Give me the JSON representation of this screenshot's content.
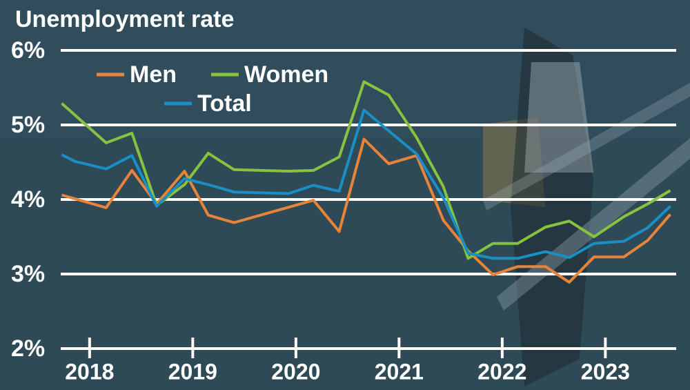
{
  "chart_data": {
    "type": "line",
    "title": "Unemployment rate",
    "xlim": [
      2017.72,
      2023.66
    ],
    "xticks": [
      2018,
      2019,
      2020,
      2021,
      2022,
      2023
    ],
    "ylim": [
      2,
      6
    ],
    "yticks": [
      {
        "value": 2,
        "label": "2%"
      },
      {
        "value": 3,
        "label": "3%"
      },
      {
        "value": 4,
        "label": "4%"
      },
      {
        "value": 5,
        "label": "5%"
      },
      {
        "value": 6,
        "label": "6%"
      }
    ],
    "grid": true,
    "series": [
      {
        "name": "Men",
        "color": "#e8843a",
        "x": [
          2017.73,
          2018.16,
          2018.41,
          2018.65,
          2018.92,
          2019.15,
          2019.4,
          2020.17,
          2020.42,
          2020.66,
          2020.9,
          2021.17,
          2021.43,
          2021.67,
          2021.91,
          2022.15,
          2022.42,
          2022.65,
          2022.89,
          2023.18,
          2023.41,
          2023.63
        ],
        "values": [
          4.06,
          3.89,
          4.39,
          3.94,
          4.38,
          3.79,
          3.69,
          3.99,
          3.57,
          4.81,
          4.48,
          4.59,
          3.72,
          3.31,
          2.99,
          3.1,
          3.1,
          2.89,
          3.23,
          3.23,
          3.45,
          3.8
        ]
      },
      {
        "name": "Women",
        "color": "#86c440",
        "x": [
          2017.73,
          2018.16,
          2018.41,
          2018.65,
          2018.92,
          2019.15,
          2019.4,
          2019.93,
          2020.17,
          2020.42,
          2020.66,
          2020.9,
          2021.17,
          2021.43,
          2021.67,
          2021.91,
          2022.15,
          2022.42,
          2022.65,
          2022.89,
          2023.18,
          2023.41,
          2023.63
        ],
        "values": [
          5.29,
          4.76,
          4.89,
          3.92,
          4.2,
          4.62,
          4.4,
          4.38,
          4.39,
          4.57,
          5.58,
          5.4,
          4.83,
          4.17,
          3.21,
          3.41,
          3.41,
          3.63,
          3.71,
          3.5,
          3.77,
          3.94,
          4.12
        ]
      },
      {
        "name": "Total",
        "color": "#1a8fc6",
        "x": [
          2017.73,
          2017.86,
          2018.16,
          2018.41,
          2018.65,
          2018.92,
          2019.15,
          2019.4,
          2019.93,
          2020.17,
          2020.42,
          2020.66,
          2020.9,
          2021.17,
          2021.43,
          2021.67,
          2021.91,
          2022.15,
          2022.42,
          2022.65,
          2022.89,
          2023.18,
          2023.41,
          2023.63
        ],
        "values": [
          4.6,
          4.51,
          4.41,
          4.59,
          3.91,
          4.28,
          4.2,
          4.1,
          4.08,
          4.19,
          4.11,
          5.2,
          4.92,
          4.61,
          4.02,
          3.28,
          3.21,
          3.21,
          3.3,
          3.22,
          3.41,
          3.44,
          3.62,
          3.91
        ]
      }
    ]
  }
}
